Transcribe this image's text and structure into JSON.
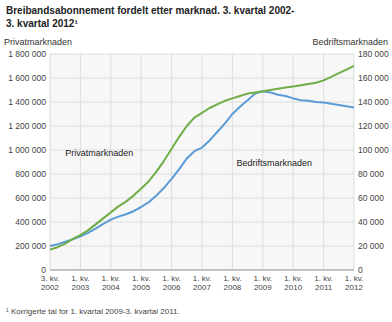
{
  "chart_data": {
    "type": "line",
    "title": "Breibandsabonnement fordelt etter marknad. 3. kvartal 2002-\n3. kvartal 2012¹",
    "footnote": "¹ Korrigerte tal for 1. kvartal 2009-3. kvartal 2011.",
    "ylabel": "Privatmarknaden",
    "y2label": "Bedriftsmarknaden",
    "annotations": [
      "Bedriftsmarknaden",
      "Privatmarknaden"
    ],
    "categories": [
      "3. kv.\n2002",
      null,
      null,
      null,
      "1. kv.\n2003",
      null,
      null,
      null,
      "1. kv.\n2004",
      null,
      null,
      null,
      "1. kv.\n2005",
      null,
      null,
      null,
      "1. kv.\n2006",
      null,
      null,
      null,
      "1. kv.\n2007",
      null,
      null,
      null,
      "1. kv.\n2008",
      null,
      null,
      null,
      "1. kv.\n2009",
      null,
      null,
      null,
      "1. kv.\n2010",
      null,
      null,
      null,
      "1. kv.\n2011",
      null,
      null,
      null,
      "1. kv.\n2012"
    ],
    "series": [
      {
        "color": "#5b9bd5",
        "axis": "y",
        "values": [
          200000,
          215000,
          235000,
          255000,
          280000,
          310000,
          345000,
          385000,
          420000,
          445000,
          465000,
          490000,
          525000,
          565000,
          620000,
          685000,
          760000,
          840000,
          930000,
          990000,
          1020000,
          1080000,
          1150000,
          1220000,
          1300000,
          1360000,
          1415000,
          1470000,
          1490000,
          1480000,
          1460000,
          1450000,
          1430000,
          1415000,
          1410000,
          1400000,
          1395000,
          1385000,
          1375000,
          1365000,
          1355000
        ]
      },
      {
        "color": "#70ad47",
        "axis": "y2",
        "values": [
          17000,
          19000,
          22000,
          26000,
          29000,
          33000,
          38000,
          43000,
          48000,
          53000,
          57000,
          62000,
          68000,
          74000,
          82000,
          91000,
          101000,
          111000,
          120000,
          127000,
          131000,
          135000,
          138000,
          141000,
          143000,
          145000,
          147000,
          148000,
          149000,
          150000,
          151000,
          152000,
          153000,
          154000,
          155000,
          156000,
          158000,
          161000,
          164000,
          167000,
          170000
        ]
      }
    ],
    "ylim": [
      0,
      1800000
    ],
    "yticks": [
      0,
      {
        "value": 200000,
        "label": "200 000"
      },
      {
        "value": 400000,
        "label": "400 000"
      },
      {
        "value": 600000,
        "label": "600 000"
      },
      {
        "value": 800000,
        "label": "800 000"
      },
      {
        "value": 1000000,
        "label": "1 000 000"
      },
      {
        "value": 1200000,
        "label": "1 200 000"
      },
      {
        "value": 1400000,
        "label": "1 400 000"
      },
      {
        "value": 1600000,
        "label": "1 600 000"
      },
      {
        "value": 1800000,
        "label": "1 800 000"
      }
    ],
    "y2lim": [
      0,
      180000
    ],
    "y2ticks": [
      0,
      {
        "value": 20000,
        "label": "20 000"
      },
      {
        "value": 40000,
        "label": "40 000"
      },
      {
        "value": 60000,
        "label": "60 000"
      },
      {
        "value": 80000,
        "label": "80 000"
      },
      {
        "value": 100000,
        "label": "100 000"
      },
      {
        "value": 120000,
        "label": "120 000"
      },
      {
        "value": 140000,
        "label": "140 000"
      },
      {
        "value": 160000,
        "label": "160 000"
      },
      {
        "value": 180000,
        "label": "180 000"
      }
    ],
    "grid": true
  }
}
